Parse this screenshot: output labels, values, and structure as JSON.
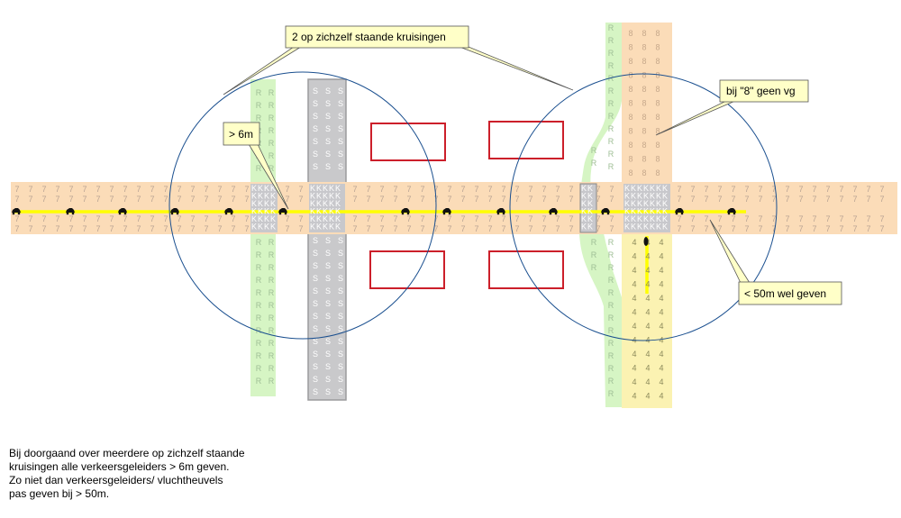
{
  "callouts": {
    "crossings": "2 op zichzelf staande kruisingen",
    "gap": "> 6m",
    "no_guide": "bij \"8\" geen vg",
    "within_50": "< 50m wel geven"
  },
  "note_lines": [
    "Bij doorgaand over meerdere op zichzelf staande",
    "kruisingen alle verkeersgeleiders > 6m geven.",
    "Zo niet dan verkeersgeleiders/ vluchtheuvels",
    "pas geven bij > 50m."
  ],
  "tile_labels": {
    "main_road": "7",
    "cycle_path": "R",
    "rail": "S",
    "crossing": "K",
    "road_north": "8",
    "road_south": "4"
  },
  "colors": {
    "main_road": "#fbdcb8",
    "cycle_path": "#d6f5c4",
    "rail": "#c9c9cb",
    "crossing": "#c8c8cc",
    "road_south": "#fbf2b2",
    "center_line": "#ffff00",
    "building_outline": "#cc1f2a",
    "circle": "#1a4f8f",
    "callout_fill": "#ffffc8"
  }
}
